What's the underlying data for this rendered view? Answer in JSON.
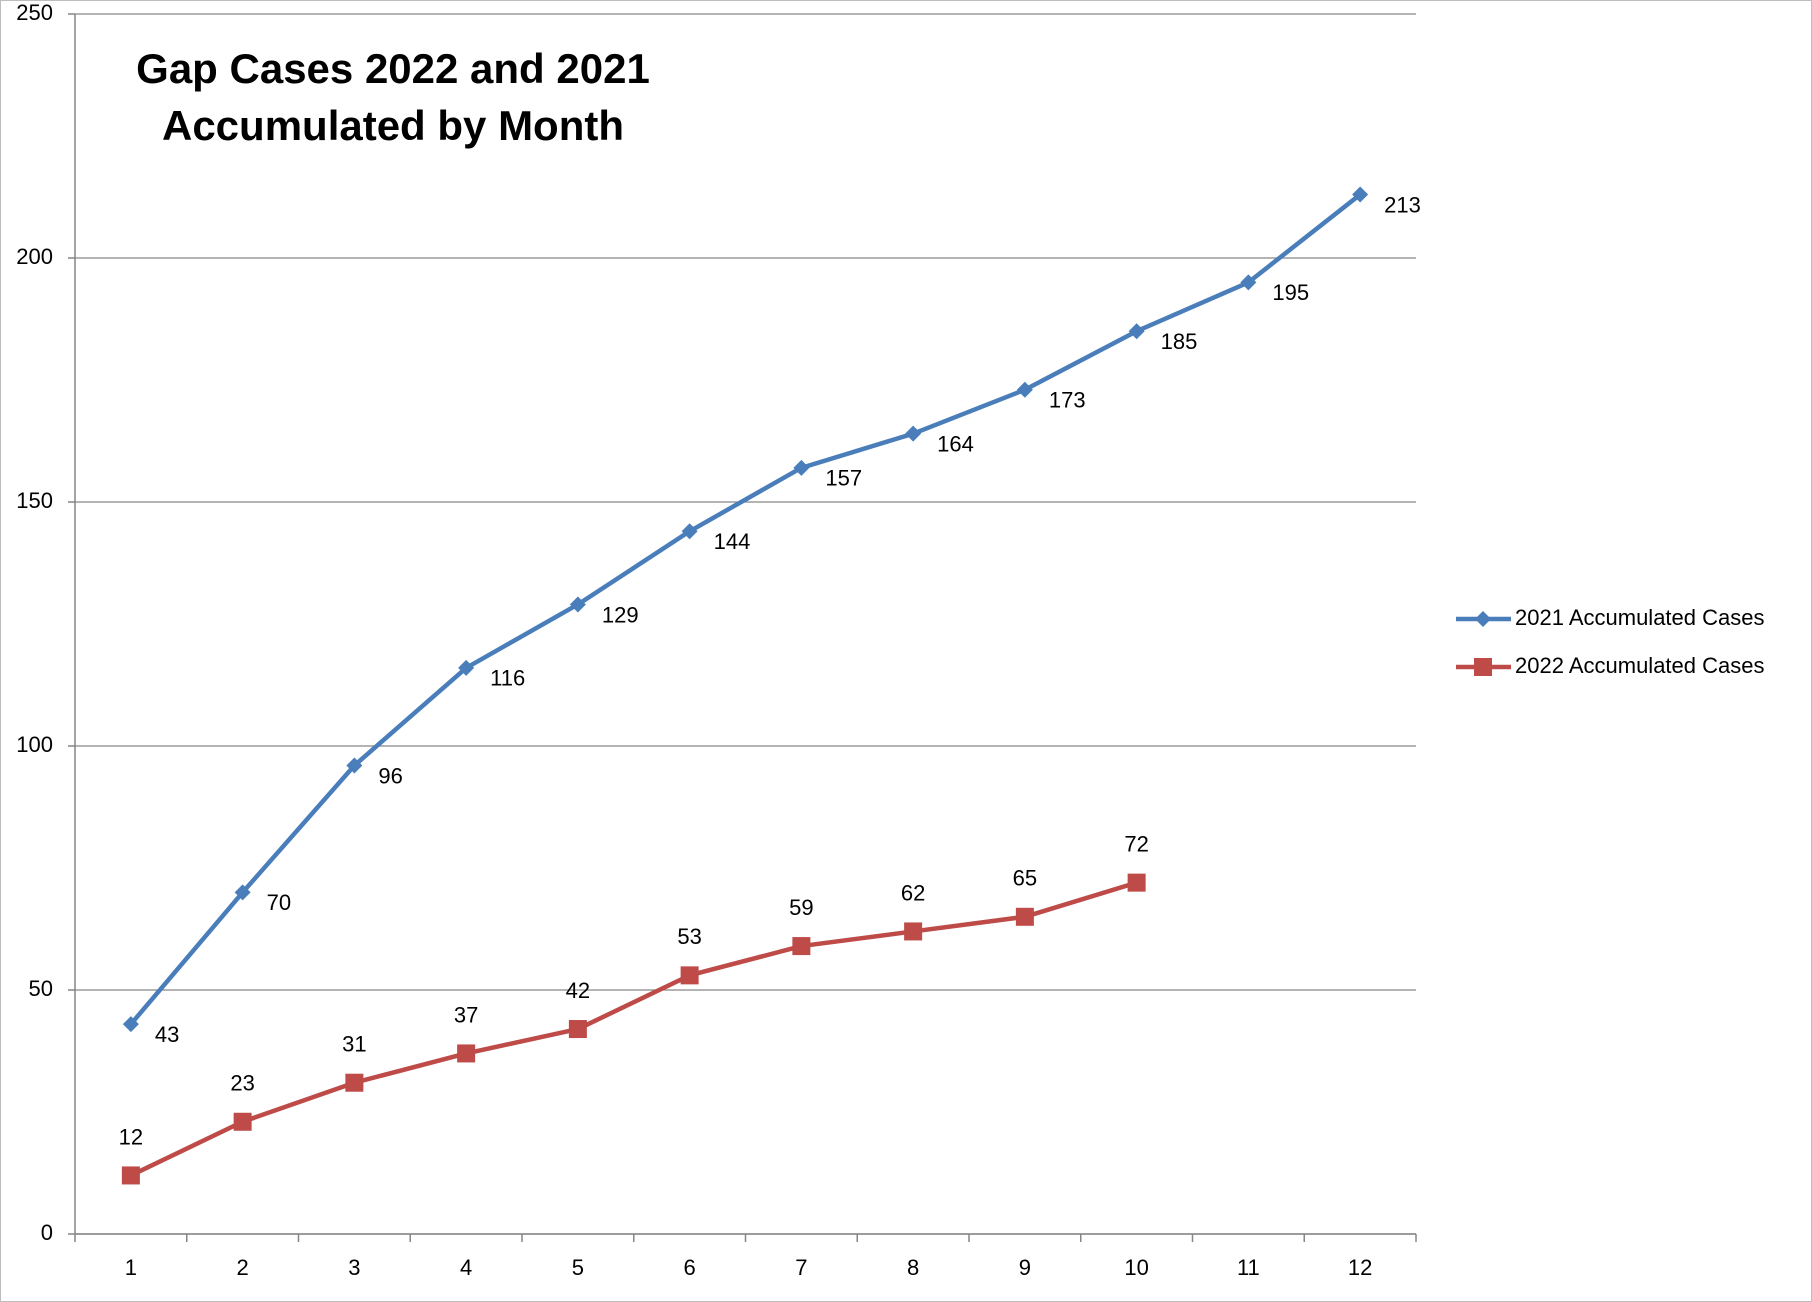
{
  "chart_data": {
    "type": "line",
    "title": [
      "Gap Cases 2022 and 2021",
      "Accumulated by Month"
    ],
    "categories": [
      "1",
      "2",
      "3",
      "4",
      "5",
      "6",
      "7",
      "8",
      "9",
      "10",
      "11",
      "12"
    ],
    "series": [
      {
        "name": "2021 Accumulated Cases",
        "color": "#4a7ebb",
        "marker": "diamond",
        "label_position": "right",
        "values": [
          43,
          70,
          96,
          116,
          129,
          144,
          157,
          164,
          173,
          185,
          195,
          213
        ]
      },
      {
        "name": "2022 Accumulated Cases",
        "color": "#be4b48",
        "marker": "square",
        "label_position": "above",
        "values": [
          12,
          23,
          31,
          37,
          42,
          53,
          59,
          62,
          65,
          72,
          null,
          null
        ]
      }
    ],
    "ylim": [
      0,
      250
    ],
    "yticks": [
      0,
      50,
      100,
      150,
      200,
      250
    ],
    "grid": true,
    "legend": "right"
  }
}
